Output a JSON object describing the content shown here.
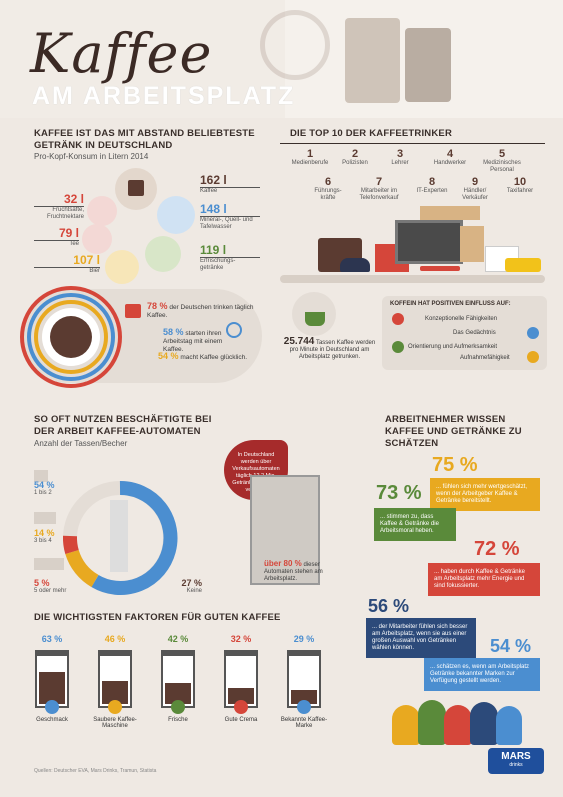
{
  "header": {
    "title": "Kaffee",
    "subtitle": "AM ARBEITSPLATZ"
  },
  "section1": {
    "heading": "KAFFEE IST DAS MIT ABSTAND BELIEBTESTE GETRÄNK IN DEUTSCHLAND",
    "subheading": "Pro-Kopf-Konsum in Litern 2014",
    "items": [
      {
        "value": "162 l",
        "label": "Kaffee"
      },
      {
        "value": "148 l",
        "label": "Mineral-, Quell- und Tafelwasser"
      },
      {
        "value": "119 l",
        "label": "Erfrischungs- getränke"
      },
      {
        "value": "32 l",
        "label": "Fruchtsäfte, Fruchtnektare"
      },
      {
        "value": "79 l",
        "label": "Tee"
      },
      {
        "value": "107 l",
        "label": "Bier"
      }
    ],
    "facts": [
      {
        "pct": "78 %",
        "text": "der Deutschen trinken täglich Kaffee."
      },
      {
        "pct": "58 %",
        "text": "starten ihren Arbeitstag mit einem Kaffee."
      },
      {
        "pct": "54 %",
        "text": "macht Kaffee glücklich."
      }
    ]
  },
  "section2": {
    "heading": "DIE TOP 10 DER KAFFEETRINKER",
    "ranks": [
      {
        "n": "1",
        "label": "Medienberufe"
      },
      {
        "n": "2",
        "label": "Polizisten"
      },
      {
        "n": "3",
        "label": "Lehrer"
      },
      {
        "n": "4",
        "label": "Handwerker"
      },
      {
        "n": "5",
        "label": "Medizinisches Personal"
      },
      {
        "n": "6",
        "label": "Führungs- kräfte"
      },
      {
        "n": "7",
        "label": "Mitarbeiter im Telefonverkauf"
      },
      {
        "n": "8",
        "label": "IT-Experten"
      },
      {
        "n": "9",
        "label": "Händler/ Verkäufer"
      },
      {
        "n": "10",
        "label": "Taxifahrer"
      }
    ],
    "cups_value": "25.744",
    "cups_text": "Tassen Kaffee werden pro Minute in Deutschland am Arbeitsplatz getrunken.",
    "influence_title": "KOFFEIN HAT POSITIVEN EINFLUSS AUF:",
    "influence": [
      "Konzeptionelle Fähigkeiten",
      "Das Gedächtnis",
      "Orientierung und Aufmerksamkeit",
      "Aufnahmefähigkeit"
    ]
  },
  "section3": {
    "heading": "SO OFT NUTZEN BESCHÄFTIGTE BEI DER ARBEIT KAFFEE-AUTOMATEN",
    "subheading": "Anzahl der Tassen/Becher",
    "legend": [
      {
        "pct": "54 %",
        "label": "1 bis 2"
      },
      {
        "pct": "14 %",
        "label": "3 bis 4"
      },
      {
        "pct": "5 %",
        "label": "5 oder mehr"
      },
      {
        "pct": "27 %",
        "label": "Keine"
      }
    ],
    "automat_text": "In Deutschland werden über Verkaufsautomaten täglich 12,2 Mio. Getränke & Snacks verkauft.",
    "automat_pct": "über 80 %",
    "automat_pct_text": "dieser Automaten stehen am Arbeitsplatz."
  },
  "section4": {
    "heading": "ARBEITNEHMER WISSEN KAFFEE UND GETRÄNKE ZU SCHÄTZEN",
    "bubbles": [
      {
        "pct": "75 %",
        "text": "... fühlen sich mehr wertgeschätzt, wenn der Arbeitgeber Kaffee & Getränke bereitstellt."
      },
      {
        "pct": "73 %",
        "text": "... stimmen zu, dass Kaffee & Getränke die Arbeitsmoral heben."
      },
      {
        "pct": "72 %",
        "text": "... haben durch Kaffee & Getränke am Arbeitsplatz mehr Energie und sind fokussierter."
      },
      {
        "pct": "56 %",
        "text": "... der Mitarbeiter fühlen sich besser am Arbeitsplatz, wenn sie aus einer großen Auswahl von Getränken wählen können."
      },
      {
        "pct": "54 %",
        "text": "... schätzen es, wenn am Arbeitsplatz Getränke bekannter Marken zur Verfügung gestellt werden."
      }
    ]
  },
  "section5": {
    "heading": "DIE WICHTIGSTEN FAKTOREN FÜR GUTEN KAFFEE",
    "factors": [
      {
        "pct": "63 %",
        "label": "Geschmack",
        "fill": 0.63,
        "color": "#4b8ed0"
      },
      {
        "pct": "46 %",
        "label": "Saubere Kaffee-Maschine",
        "fill": 0.46,
        "color": "#e8a920"
      },
      {
        "pct": "42 %",
        "label": "Frische",
        "fill": 0.42,
        "color": "#5a8a3a"
      },
      {
        "pct": "32 %",
        "label": "Gute Crema",
        "fill": 0.32,
        "color": "#d5463a"
      },
      {
        "pct": "29 %",
        "label": "Bekannte Kaffee-Marke",
        "fill": 0.29,
        "color": "#4b8ed0"
      }
    ]
  },
  "footer": {
    "sources": "Quellen: Deutscher EVA, Mars Drinks, Tramun, Statista",
    "brand": "MARS",
    "brand_sub": "drinks"
  },
  "colors": {
    "brown": "#5b3b31",
    "red": "#d5463a",
    "blue": "#4b8ed0",
    "yellow": "#e8a920",
    "green": "#5a8a3a",
    "gray": "#6f6f6f"
  }
}
